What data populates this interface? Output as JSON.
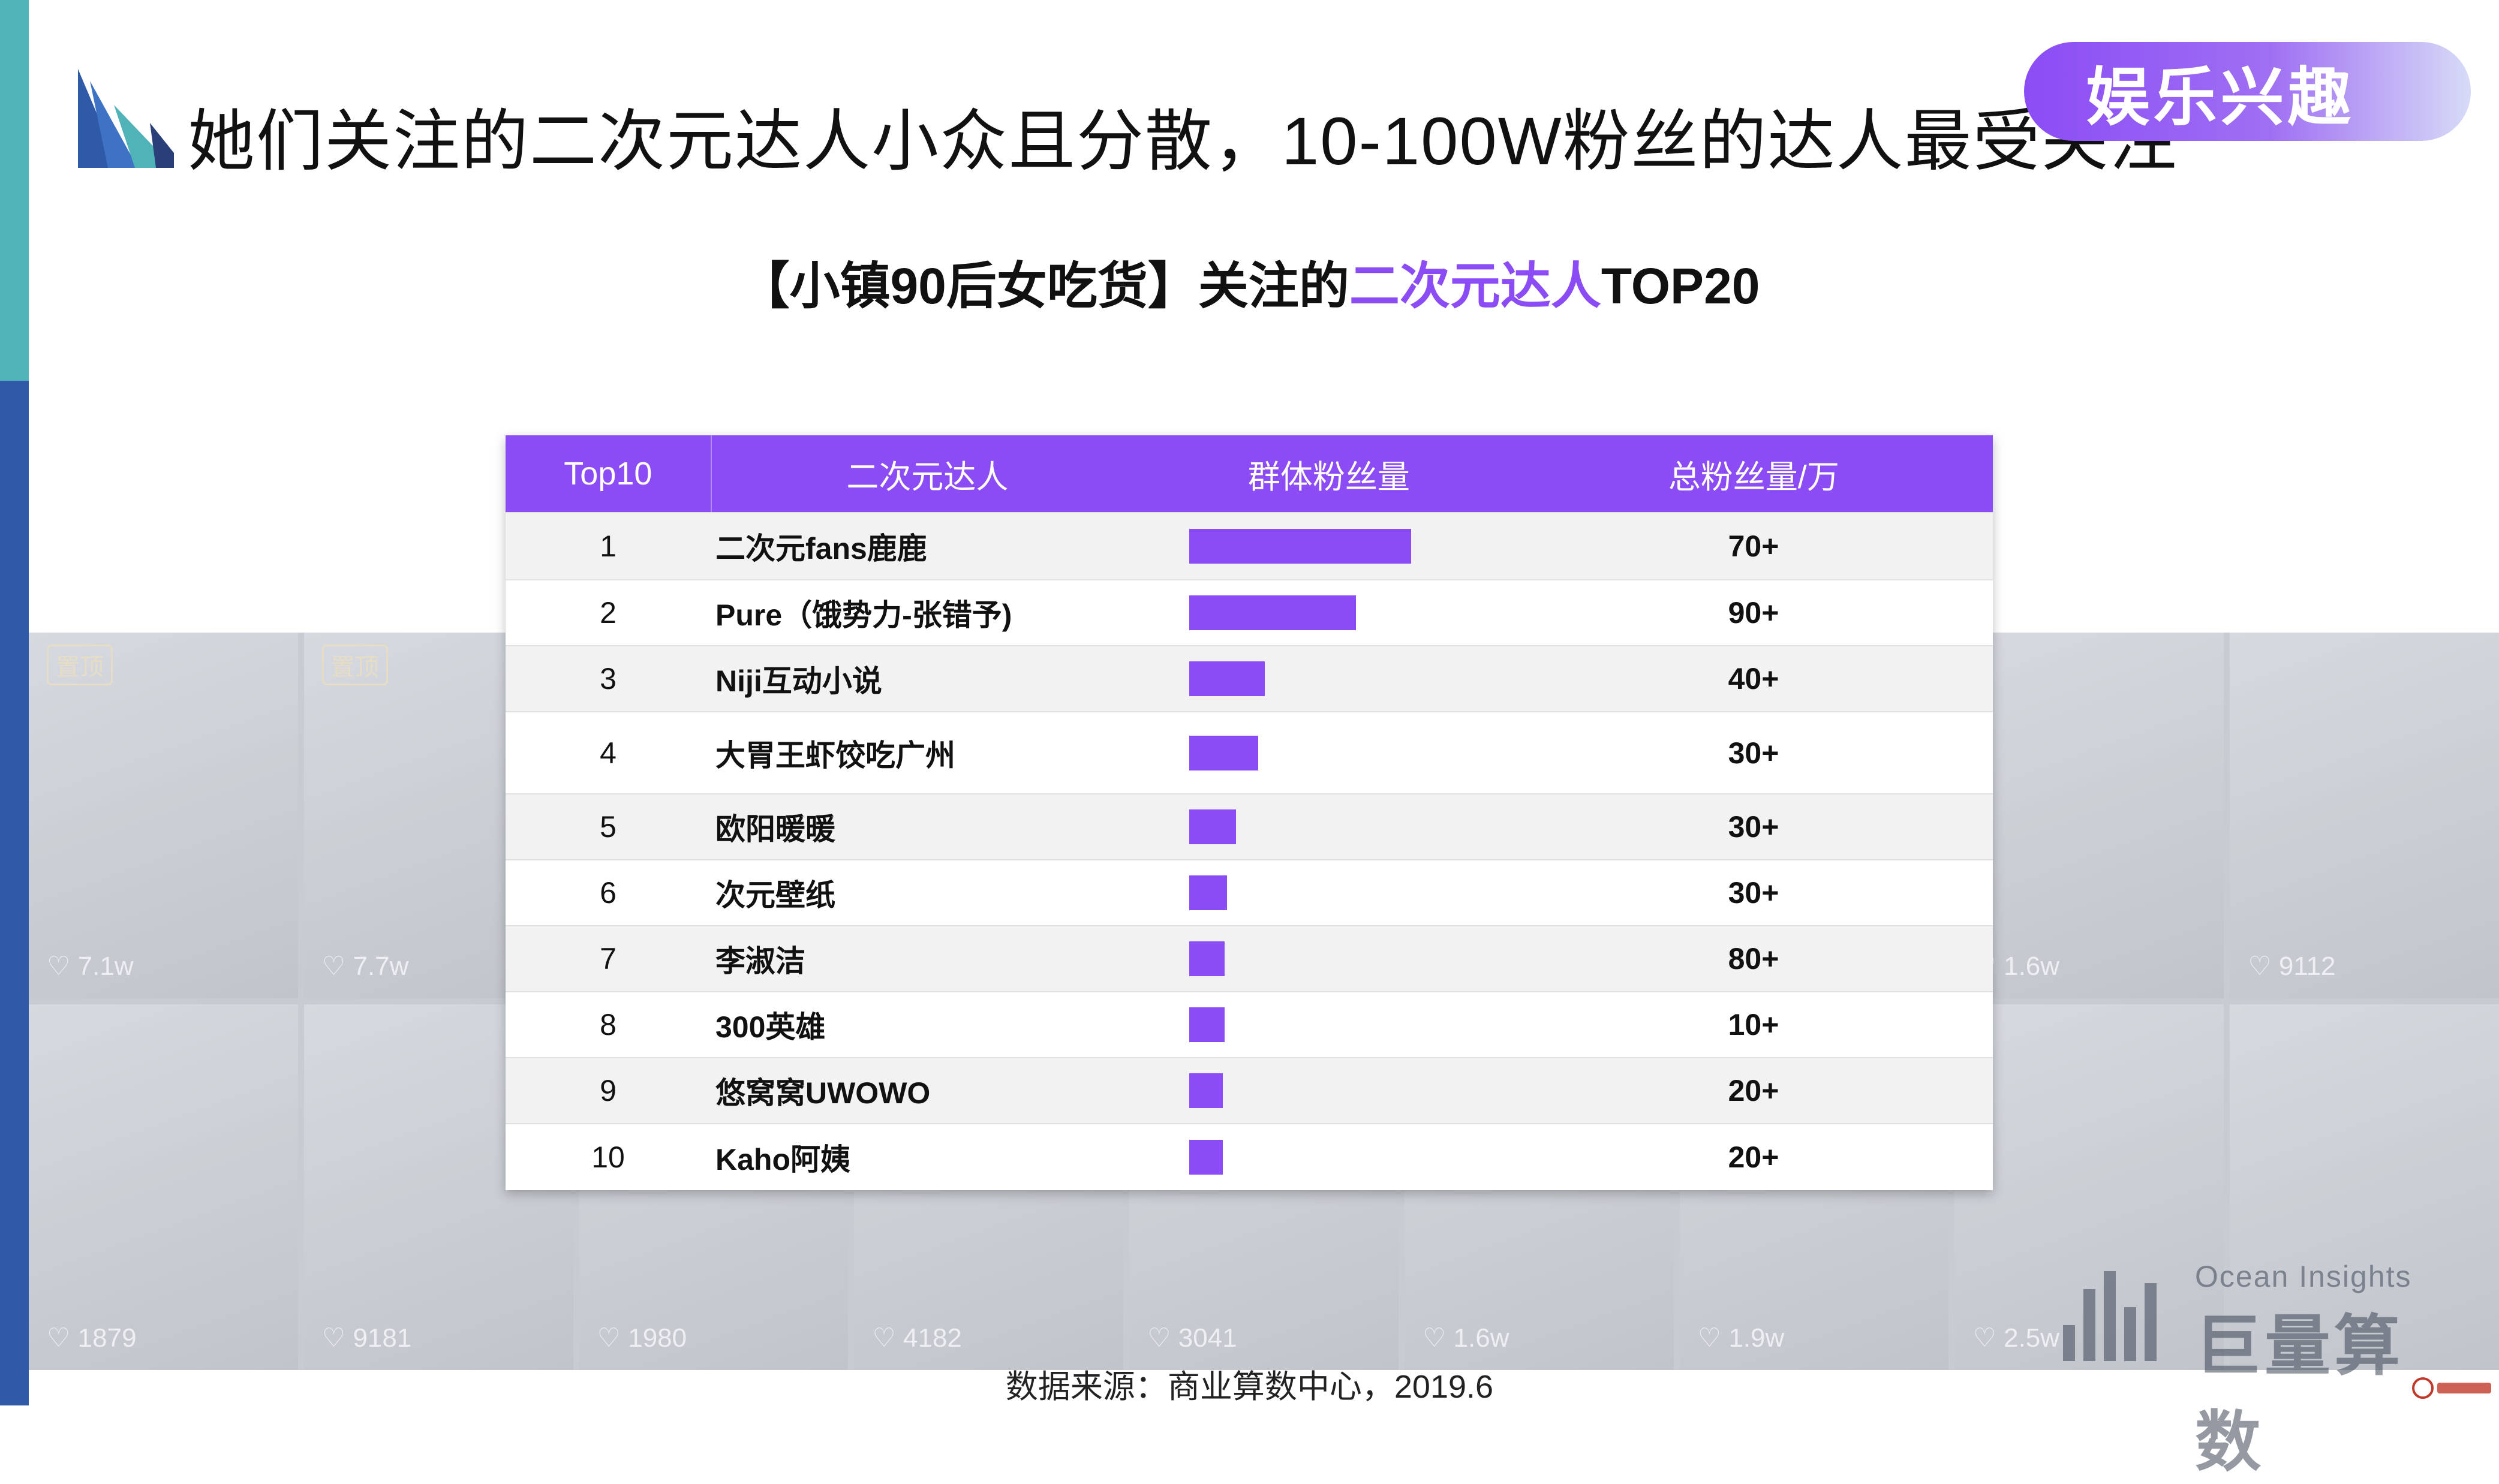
{
  "header": {
    "title": "她们关注的二次元达人小众且分散，10-100W粉丝的达人最受关注",
    "tag": "娱乐兴趣"
  },
  "subtitle": {
    "prefix": "【小镇90后女吃货】关注的",
    "highlight": "二次元达人",
    "suffix": "TOP20"
  },
  "background_photos": {
    "pins": [
      "置顶",
      "置顶"
    ],
    "likes": [
      "7.1w",
      "7.7w",
      "",
      "",
      "",
      "",
      "",
      "1.6w",
      "9112",
      "1879",
      "9181",
      "1980",
      "4182",
      "3041",
      "1.6w",
      "1.9w",
      "2.5w",
      ""
    ]
  },
  "table": {
    "headers": [
      "Top10",
      "二次元达人",
      "群体粉丝量",
      "总粉丝量/万"
    ],
    "rows": [
      {
        "rank": "1",
        "name": "二次元fans鹿鹿",
        "group_fans": 1.0,
        "total": "70+"
      },
      {
        "rank": "2",
        "name": "Pure（饿势力-张错予)",
        "group_fans": 0.75,
        "total": "90+"
      },
      {
        "rank": "3",
        "name": "Niji互动小说",
        "group_fans": 0.34,
        "total": "40+"
      },
      {
        "rank": "4",
        "name": "大胃王虾饺吃广州",
        "group_fans": 0.31,
        "total": "30+"
      },
      {
        "rank": "5",
        "name": "欧阳暖暖",
        "group_fans": 0.21,
        "total": "30+"
      },
      {
        "rank": "6",
        "name": "次元壁纸",
        "group_fans": 0.17,
        "total": "30+"
      },
      {
        "rank": "7",
        "name": "李淑洁",
        "group_fans": 0.16,
        "total": "80+"
      },
      {
        "rank": "8",
        "name": "300英雄",
        "group_fans": 0.16,
        "total": "10+"
      },
      {
        "rank": "9",
        "name": "悠窝窝UWOWO",
        "group_fans": 0.15,
        "total": "20+"
      },
      {
        "rank": "10",
        "name": "Kaho阿姨",
        "group_fans": 0.15,
        "total": "20+"
      }
    ]
  },
  "brand": {
    "en": "Ocean Insights",
    "cn": "巨量算数"
  },
  "source": "数据来源：商业算数中心，2019.6",
  "colors": {
    "accent": "#8b4cf5",
    "side_top": "#4fb3b8",
    "side_bottom": "#2f5aa8"
  }
}
